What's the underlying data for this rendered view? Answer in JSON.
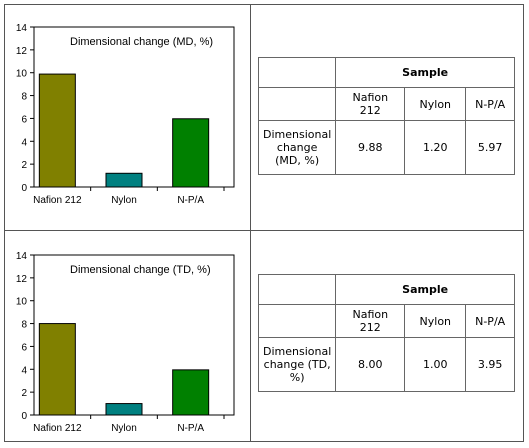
{
  "chart_data": [
    {
      "type": "bar",
      "title": "Dimensional change (MD, %)",
      "categories": [
        "Nafion 212",
        "Nylon",
        "N-P/A"
      ],
      "values": [
        9.88,
        1.2,
        5.97
      ],
      "colors": [
        "#808000",
        "#008080",
        "#008000"
      ],
      "ylim": [
        0,
        14
      ],
      "yticks": [
        "0",
        "2",
        "4",
        "6",
        "8",
        "10",
        "12",
        "14"
      ],
      "grid": false,
      "xlabel": "",
      "ylabel": ""
    },
    {
      "type": "bar",
      "title": "Dimensional change (TD, %)",
      "categories": [
        "Nafion 212",
        "Nylon",
        "N-P/A"
      ],
      "values": [
        8.0,
        1.0,
        3.95
      ],
      "colors": [
        "#808000",
        "#008080",
        "#008000"
      ],
      "ylim": [
        0,
        14
      ],
      "yticks": [
        "0",
        "2",
        "4",
        "6",
        "8",
        "10",
        "12",
        "14"
      ],
      "grid": false,
      "xlabel": "",
      "ylabel": ""
    }
  ],
  "tables": [
    {
      "header": "Sample",
      "columns": [
        "Nafion 212",
        "Nylon",
        "N-P/A"
      ],
      "row_label": "Dimensional change (MD, %)",
      "values": [
        "9.88",
        "1.20",
        "5.97"
      ]
    },
    {
      "header": "Sample",
      "columns": [
        "Nafion 212",
        "Nylon",
        "N-P/A"
      ],
      "row_label": "Dimensional change (TD, %)",
      "values": [
        "8.00",
        "1.00",
        "3.95"
      ]
    }
  ]
}
